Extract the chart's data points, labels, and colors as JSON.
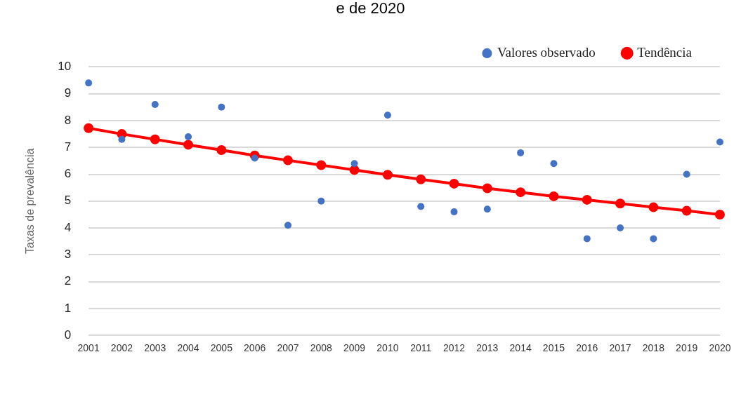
{
  "chart_data": {
    "type": "line",
    "title": "e de 2020",
    "ylabel": "Taxas de prevalência",
    "categories": [
      "2001",
      "2002",
      "2003",
      "2004",
      "2005",
      "2006",
      "2007",
      "2008",
      "2009",
      "2010",
      "2011",
      "2012",
      "2013",
      "2014",
      "2015",
      "2016",
      "2017",
      "2018",
      "2019",
      "2020"
    ],
    "series": [
      {
        "name": "Tendência",
        "type": "line",
        "color": "#ff0000",
        "marker": "circle",
        "values": [
          7.72,
          7.5,
          7.3,
          7.1,
          6.9,
          6.7,
          6.52,
          6.34,
          6.16,
          5.98,
          5.81,
          5.65,
          5.48,
          5.33,
          5.18,
          5.05,
          4.91,
          4.77,
          4.64,
          4.5
        ]
      },
      {
        "name": "Valores observado",
        "type": "scatter",
        "color": "#4472c4",
        "marker": "circle",
        "values": [
          9.4,
          7.3,
          8.6,
          7.4,
          8.5,
          6.6,
          4.1,
          5.0,
          6.4,
          8.2,
          4.8,
          4.6,
          4.7,
          6.8,
          6.4,
          3.6,
          4.0,
          3.6,
          6.0,
          7.2
        ]
      }
    ],
    "ylim": [
      0,
      10
    ],
    "yticks": [
      0,
      1,
      2,
      3,
      4,
      5,
      6,
      7,
      8,
      9,
      10
    ],
    "grid": "y",
    "legend": "top right"
  }
}
